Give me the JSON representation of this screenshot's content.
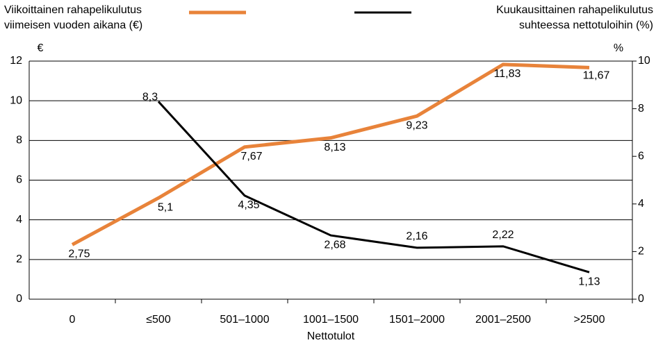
{
  "chart_data": {
    "type": "line",
    "x_label": "Nettotulot",
    "y_unit": "€",
    "y2_unit": "%",
    "categories": [
      "0",
      "≤500",
      "501–1000",
      "1001–1500",
      "1501–2000",
      "2001–2500",
      ">2500"
    ],
    "series": [
      {
        "name": "Viikoittainen rahapelikulutus viimeisen vuoden aikana (€)",
        "color": "#e8833a",
        "values": [
          2.75,
          5.1,
          7.67,
          8.13,
          9.23,
          11.83,
          11.67
        ],
        "value_labels": [
          "2,75",
          "5,1",
          "7,67",
          "8,13",
          "9,23",
          "11,83",
          "11,67"
        ]
      },
      {
        "name": "Kuukausittainen rahapelikulutus suhteessa nettotuloihin (%)",
        "color": "#000000",
        "axis": "y2",
        "values": [
          null,
          8.3,
          4.35,
          2.68,
          2.16,
          2.22,
          1.13
        ],
        "value_labels": [
          null,
          "8,3",
          "4,35",
          "2,68",
          "2,16",
          "2,22",
          "1,13"
        ]
      }
    ],
    "ylim": [
      0,
      12
    ],
    "yticks": [
      0,
      2,
      4,
      6,
      8,
      10,
      12
    ],
    "y2lim": [
      0,
      10
    ],
    "y2ticks": [
      0,
      2,
      4,
      6,
      8,
      10
    ],
    "grid": true
  }
}
